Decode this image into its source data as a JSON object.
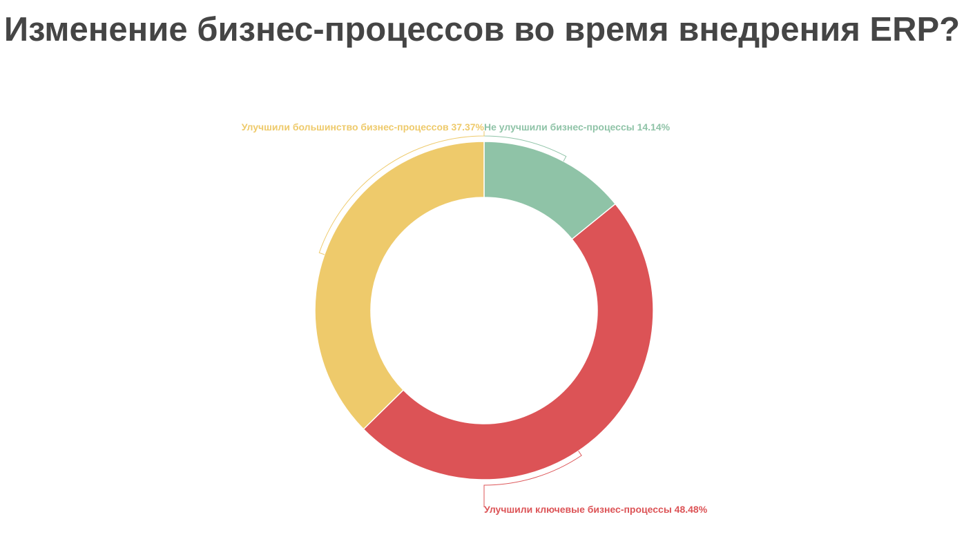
{
  "title": "Изменение бизнес-процессов во время внедрения ERP?",
  "chart_data": {
    "type": "pie",
    "title": "Изменение бизнес-процессов во время внедрения ERP?",
    "donut": true,
    "slices": [
      {
        "label": "Не улучшили бизнес-процессы",
        "value": 14.14,
        "display": "14.14%",
        "color": "#8fc3a7"
      },
      {
        "label": "Улучшили ключевые бизнес-процессы",
        "value": 48.48,
        "display": "48.48%",
        "color": "#dc5356"
      },
      {
        "label": "Улучшили большинство бизнес-процессов",
        "value": 37.37,
        "display": "37.37%",
        "color": "#eeca6b"
      }
    ]
  }
}
